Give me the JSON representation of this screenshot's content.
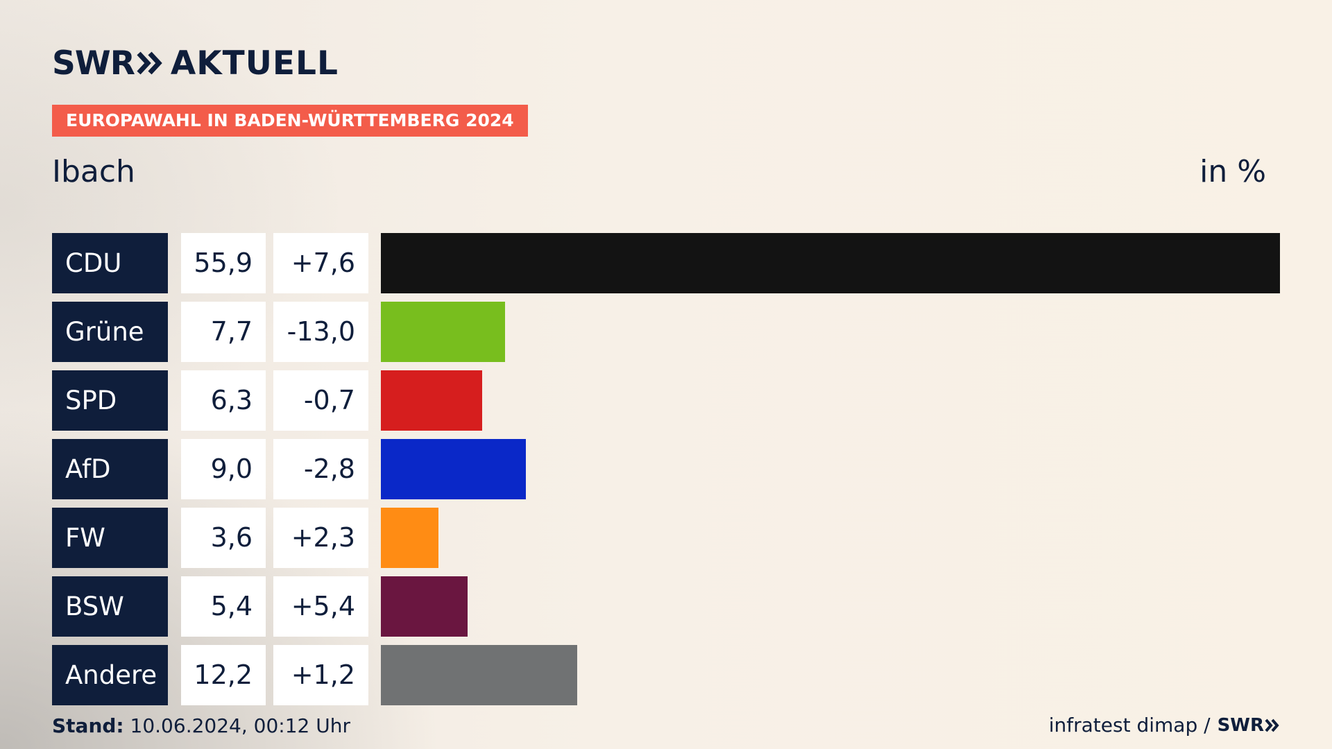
{
  "brand": {
    "name_left": "SWR",
    "name_right": "AKTUELL",
    "chevron_icon": "double-chevron-right-icon"
  },
  "banner": "EUROPAWAHL IN BADEN-WÜRTTEMBERG 2024",
  "region": "Ibach",
  "unit": "in %",
  "footer": {
    "stand_label": "Stand:",
    "stand_value": "10.06.2024, 00:12 Uhr",
    "source": "infratest dimap /",
    "source_brand": "SWR"
  },
  "chart_data": {
    "type": "bar",
    "orientation": "horizontal",
    "categories": [
      "CDU",
      "Grüne",
      "SPD",
      "AfD",
      "FW",
      "BSW",
      "Andere"
    ],
    "values": [
      55.9,
      7.7,
      6.3,
      9.0,
      3.6,
      5.4,
      12.2
    ],
    "value_labels": [
      "55,9",
      "7,7",
      "6,3",
      "9,0",
      "3,6",
      "5,4",
      "12,2"
    ],
    "diff_labels": [
      "+7,6",
      "-13,0",
      "-0,7",
      "-2,8",
      "+2,3",
      "+5,4",
      "+1,2"
    ],
    "colors": [
      "#131313",
      "#78be1e",
      "#d61e1e",
      "#0a28c8",
      "#ff8c14",
      "#6a1640",
      "#707273"
    ],
    "xlim": [
      0,
      55.9
    ]
  }
}
